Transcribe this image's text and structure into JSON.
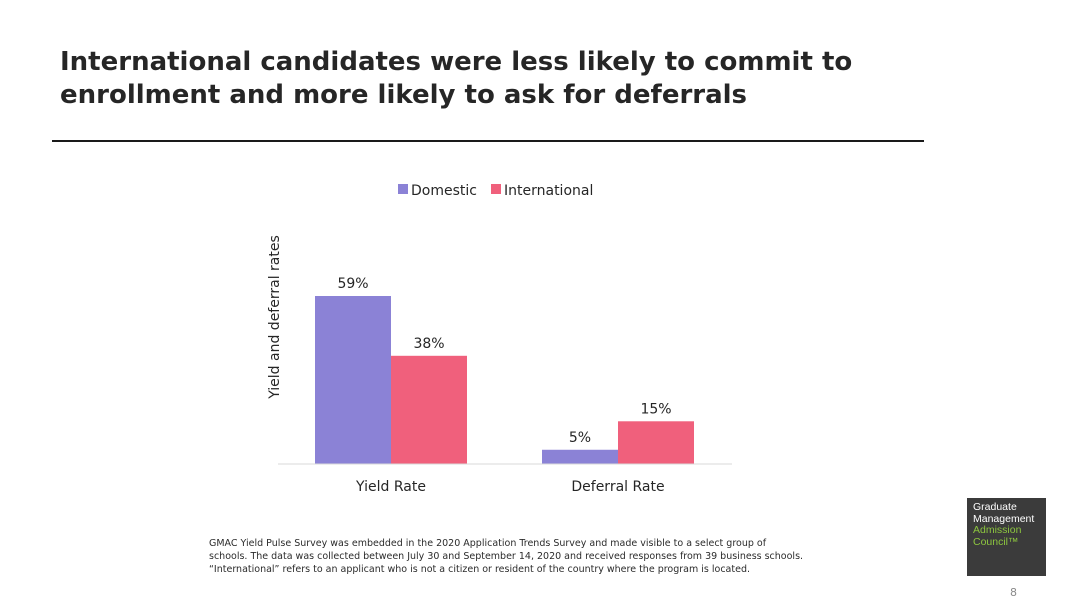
{
  "slide": {
    "title_lines": [
      "International candidates were less likely to commit to",
      "enrollment and more likely to ask for deferrals"
    ],
    "footnote_lines": [
      "GMAC Yield Pulse Survey was embedded in the 2020 Application Trends Survey and made visible to a select group of",
      "schools. The data was collected between July 30 and September 14, 2020 and received responses from 39 business schools.",
      "“International” refers to an applicant who is not a citizen or resident of the country where the program is located."
    ],
    "logo": {
      "lines": [
        "Graduate",
        "Management",
        "Admission",
        "Council™"
      ],
      "colors": [
        "#ffffff",
        "#ffffff",
        "#8dc63f",
        "#8dc63f"
      ]
    },
    "page_number": "8"
  },
  "chart_data": {
    "type": "bar",
    "categories": [
      "Yield Rate",
      "Deferral Rate"
    ],
    "series": [
      {
        "name": "Domestic",
        "values": [
          59,
          5
        ],
        "color": "#8b82d6"
      },
      {
        "name": "International",
        "values": [
          38,
          15
        ],
        "color": "#f0607c"
      }
    ],
    "data_labels": [
      [
        "59%",
        "5%"
      ],
      [
        "38%",
        "15%"
      ]
    ],
    "title": "",
    "xlabel": "",
    "ylabel": "Yield and deferral rates",
    "ylim": [
      0,
      60
    ],
    "grid": false,
    "legend": "top-center"
  }
}
